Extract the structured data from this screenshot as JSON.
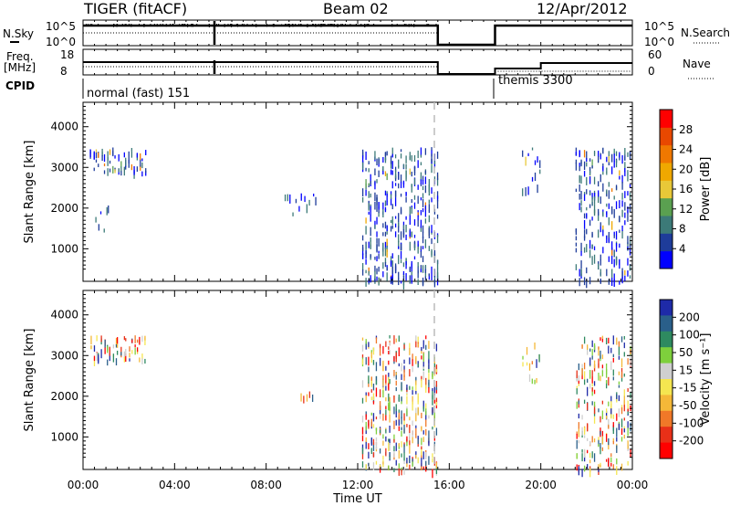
{
  "header": {
    "radar": "TIGER (fitACF)",
    "beam": "Beam 02",
    "date": "12/Apr/2012"
  },
  "top_panels": {
    "nsky_label": "N.Sky",
    "nsky_ticks": [
      "10^5",
      "10^0"
    ],
    "nsearch_label": "N.Search",
    "nsearch_ticks": [
      "10^5",
      "10^0"
    ],
    "freq_label_1": "Freq.",
    "freq_label_2": "[MHz]",
    "freq_ticks": [
      "18",
      "8"
    ],
    "nave_label": "Nave",
    "nave_ticks": [
      "60",
      "0"
    ],
    "cpid_label": "CPID",
    "cpid_modes": [
      {
        "name": "normal (fast) 151",
        "start": "00:00",
        "end": "15:30"
      },
      {
        "name": "themis 3300",
        "start": "18:00",
        "end": "24:00"
      }
    ],
    "data_gap": [
      "15:30",
      "18:00"
    ],
    "freq_step_at": "20:00"
  },
  "x_axis": {
    "label": "Time UT",
    "ticks": [
      "00:00",
      "04:00",
      "08:00",
      "12:00",
      "16:00",
      "20:00",
      "00:00"
    ]
  },
  "y_axis": {
    "label": "Slant Range [km]",
    "ticks": [
      "1000",
      "2000",
      "3000",
      "4000"
    ]
  },
  "power_colorbar": {
    "label": "Power [dB]",
    "ticks": [
      "28",
      "24",
      "20",
      "16",
      "12",
      "8",
      "4"
    ],
    "colors": [
      "#0000ff",
      "#1e3c9a",
      "#3c7a78",
      "#5aa050",
      "#e8c838",
      "#f0a800",
      "#f07800",
      "#e84800",
      "#ff0000"
    ]
  },
  "velocity_colorbar": {
    "label": "Velocity [m s⁻¹]",
    "ticks": [
      "200",
      "100",
      "50",
      "15",
      "-15",
      "-50",
      "-100",
      "-200"
    ],
    "colors": [
      "#1e2aa8",
      "#2a5f8a",
      "#2e8a60",
      "#7ed03c",
      "#cfcfcf",
      "#f5e650",
      "#f5b838",
      "#f07828",
      "#e83018",
      "#ff0000"
    ]
  },
  "chart_data": [
    {
      "type": "heatmap",
      "title": "Beam 02",
      "xlabel": "Time UT",
      "ylabel": "Slant Range [km]",
      "xlim": [
        "00:00",
        "24:00"
      ],
      "ylim": [
        200,
        4600
      ],
      "colorbar": "Power [dB]",
      "clim": [
        0,
        32
      ],
      "regions": [
        {
          "t": [
            0.3,
            2.8
          ],
          "r": [
            2900,
            3500
          ],
          "density": 0.5,
          "value": "4-12 dB, some 16-24 dB"
        },
        {
          "t": [
            0.5,
            1.2
          ],
          "r": [
            1200,
            2500
          ],
          "density": 0.12,
          "value": "4-8 dB"
        },
        {
          "t": [
            8.8,
            10.2
          ],
          "r": [
            1800,
            2400
          ],
          "density": 0.25,
          "value": "4-12 dB"
        },
        {
          "t": [
            12.2,
            15.5
          ],
          "r": [
            200,
            3500
          ],
          "density": 0.55,
          "value": "4-8 dB"
        },
        {
          "t": [
            19.2,
            20.0
          ],
          "r": [
            2400,
            3500
          ],
          "density": 0.25,
          "value": "4-8 dB"
        },
        {
          "t": [
            21.5,
            24.0
          ],
          "r": [
            200,
            3500
          ],
          "density": 0.45,
          "value": "4-8 dB"
        }
      ]
    },
    {
      "type": "heatmap",
      "title": "Beam 02",
      "xlabel": "Time UT",
      "ylabel": "Slant Range [km]",
      "xlim": [
        "00:00",
        "24:00"
      ],
      "ylim": [
        200,
        4600
      ],
      "colorbar": "Velocity [m s⁻¹]",
      "clim": [
        -200,
        200
      ],
      "regions": [
        {
          "t": [
            0.3,
            2.8
          ],
          "r": [
            2900,
            3500
          ],
          "density": 0.5,
          "value": "-100 to 100"
        },
        {
          "t": [
            9.5,
            10.1
          ],
          "r": [
            1900,
            2200
          ],
          "density": 0.25,
          "value": "-200 to -100"
        },
        {
          "t": [
            12.2,
            15.5
          ],
          "r": [
            200,
            3500
          ],
          "density": 0.55,
          "value": "-200 to 200"
        },
        {
          "t": [
            19.2,
            20.0
          ],
          "r": [
            2400,
            3500
          ],
          "density": 0.2,
          "value": "-15 to 15"
        },
        {
          "t": [
            21.5,
            24.0
          ],
          "r": [
            200,
            3500
          ],
          "density": 0.45,
          "value": "-200 to 100"
        }
      ]
    }
  ]
}
